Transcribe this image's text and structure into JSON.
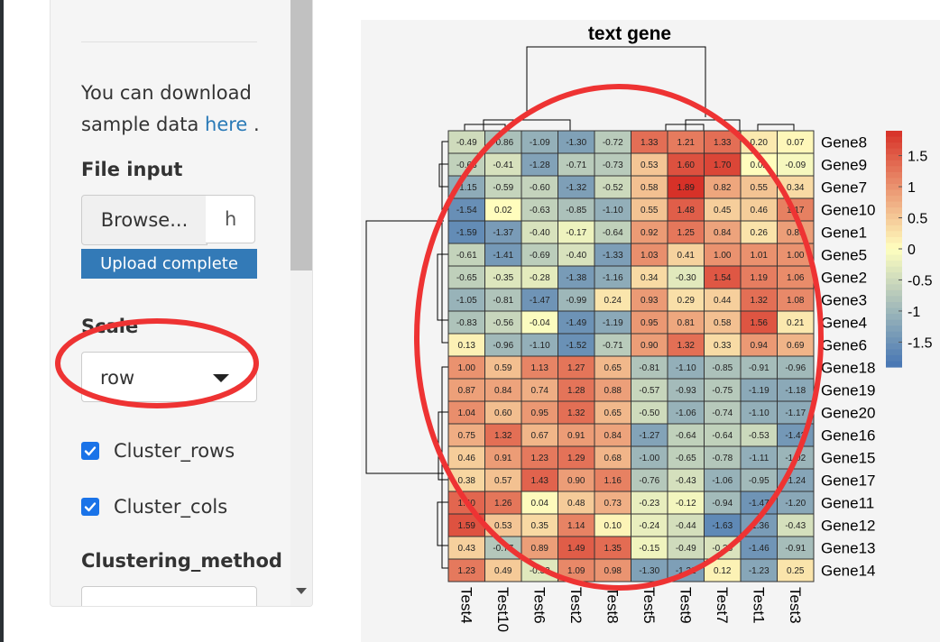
{
  "sidebar": {
    "intro_text": "You can download sample data",
    "intro_link": "here",
    "intro_suffix": " .",
    "file_input_label": "File input",
    "browse_label": "Browse...",
    "file_name": "h",
    "progress_label": "Upload complete",
    "progress_value": 1.0,
    "scale_label": "Scale",
    "scale_value": "row",
    "cluster_rows_label": "Cluster_rows",
    "cluster_rows_checked": true,
    "cluster_cols_label": "Cluster_cols",
    "cluster_cols_checked": true,
    "clustering_method_label": "Clustering_method",
    "accent_color": "#337ab7",
    "checkbox_color": "#1a73e8"
  },
  "chart_data": {
    "type": "heatmap",
    "title": "text gene",
    "columns": [
      "Test4",
      "Test10",
      "Test6",
      "Test2",
      "Test8",
      "Test5",
      "Test9",
      "Test7",
      "Test1",
      "Test3"
    ],
    "rows": [
      "Gene8",
      "Gene9",
      "Gene7",
      "Gene10",
      "Gene1",
      "Gene5",
      "Gene2",
      "Gene3",
      "Gene4",
      "Gene6",
      "Gene18",
      "Gene19",
      "Gene20",
      "Gene16",
      "Gene15",
      "Gene17",
      "Gene11",
      "Gene12",
      "Gene13",
      "Gene14"
    ],
    "values": [
      [
        -0.49,
        -0.86,
        -1.09,
        -1.3,
        -0.72,
        1.33,
        1.21,
        1.33,
        0.2,
        0.07
      ],
      [
        -0.63,
        -0.41,
        -1.28,
        -0.71,
        -0.73,
        0.53,
        1.6,
        1.7,
        0.02,
        -0.09
      ],
      [
        -1.15,
        -0.59,
        -0.6,
        -1.32,
        -0.52,
        0.58,
        1.89,
        0.82,
        0.55,
        0.34
      ],
      [
        -1.54,
        0.02,
        -0.63,
        -0.85,
        -1.1,
        0.55,
        1.48,
        0.45,
        0.46,
        1.17
      ],
      [
        -1.59,
        -1.37,
        -0.4,
        -0.17,
        -0.64,
        0.92,
        1.25,
        0.84,
        0.26,
        0.89
      ],
      [
        -0.61,
        -1.41,
        -0.69,
        -0.4,
        -1.33,
        1.03,
        0.41,
        1.0,
        1.01,
        1.0
      ],
      [
        -0.65,
        -0.35,
        -0.28,
        -1.38,
        -1.16,
        0.34,
        -0.3,
        1.54,
        1.19,
        1.06
      ],
      [
        -1.05,
        -0.81,
        -1.47,
        -0.99,
        0.24,
        0.93,
        0.29,
        0.44,
        1.32,
        1.08
      ],
      [
        -0.83,
        -0.56,
        -0.04,
        -1.49,
        -1.19,
        0.95,
        0.81,
        0.58,
        1.56,
        0.21
      ],
      [
        0.13,
        -0.96,
        -1.1,
        -1.52,
        -0.71,
        0.9,
        1.32,
        0.33,
        0.94,
        0.69
      ],
      [
        1.0,
        0.59,
        1.13,
        1.27,
        0.65,
        -0.81,
        -1.1,
        -0.85,
        -0.91,
        -0.96
      ],
      [
        0.87,
        0.84,
        0.74,
        1.28,
        0.88,
        -0.57,
        -0.93,
        -0.75,
        -1.19,
        -1.18
      ],
      [
        1.04,
        0.6,
        0.95,
        1.32,
        0.65,
        -0.5,
        -1.06,
        -0.74,
        -1.1,
        -1.17
      ],
      [
        0.75,
        1.32,
        0.67,
        0.91,
        0.84,
        -1.27,
        -0.64,
        -0.64,
        -0.53,
        -1.42
      ],
      [
        0.46,
        0.91,
        1.23,
        1.29,
        0.68,
        -1.0,
        -0.65,
        -0.78,
        -1.11,
        -1.02
      ],
      [
        0.38,
        0.57,
        1.43,
        0.9,
        1.16,
        -0.76,
        -0.43,
        -1.06,
        -0.95,
        -1.24
      ],
      [
        1.4,
        1.26,
        0.04,
        0.48,
        0.73,
        -0.23,
        -0.12,
        -0.94,
        -1.47,
        -1.2
      ],
      [
        1.59,
        0.53,
        0.35,
        1.14,
        0.1,
        -0.24,
        -0.44,
        -1.63,
        -1.36,
        -0.43
      ],
      [
        0.43,
        -0.77,
        0.89,
        1.49,
        1.35,
        -0.15,
        -0.49,
        -0.38,
        -1.46,
        -0.91
      ],
      [
        1.23,
        0.49,
        -0.32,
        1.09,
        0.98,
        -1.3,
        -1.32,
        0.12,
        -1.23,
        0.25
      ]
    ],
    "color_range": [
      -1.9,
      1.9
    ],
    "colorbar_ticks": [
      1.5,
      1,
      0.5,
      0,
      -0.5,
      -1,
      -1.5
    ],
    "colors": {
      "low": "#4575b4",
      "mid": "#ffffbf",
      "high": "#d73027"
    },
    "annotation_color": "#ee3333"
  }
}
